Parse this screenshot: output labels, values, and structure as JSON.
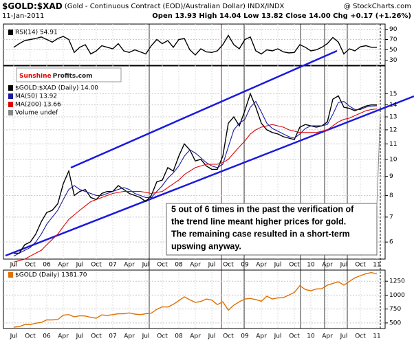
{
  "header": {
    "symbol": "$GOLD:$XAD",
    "description": "(Gold - Continuous Contract (EOD)/Australian Dollar)",
    "exchange": "INDX/INDX",
    "source": "@ StockCharts.com",
    "date": "11-Jan-2011",
    "quote": "Open 13.93 High 14.04 Low 13.82 Close 14.00 Chg +0.17 (+1.26%)"
  },
  "logo": {
    "part1": "Sunshine",
    "part2": "Profits.com"
  },
  "chart_data": [
    {
      "type": "line",
      "series": [
        {
          "name": "RSI(14) 54.91",
          "color": "#000000",
          "values": [
            55,
            62,
            68,
            70,
            72,
            75,
            70,
            65,
            72,
            76,
            70,
            45,
            55,
            60,
            42,
            48,
            58,
            55,
            52,
            62,
            48,
            45,
            50,
            46,
            42,
            58,
            70,
            62,
            68,
            55,
            70,
            72,
            50,
            40,
            52,
            46,
            45,
            48,
            60,
            78,
            60,
            52,
            70,
            75,
            48,
            42,
            50,
            48,
            52,
            46,
            44,
            45,
            60,
            55,
            48,
            50,
            55,
            62,
            74,
            65,
            42,
            52,
            48,
            56,
            58,
            55,
            54.91
          ]
        }
      ],
      "ylim": [
        20,
        100
      ],
      "yticks": [
        30,
        50,
        70,
        90
      ]
    },
    {
      "type": "line",
      "log_scale": true,
      "categories": [
        "Jul",
        null,
        null,
        "Oct",
        null,
        null,
        "06",
        null,
        null,
        "Apr",
        null,
        null,
        "Jul",
        null,
        null,
        "Oct",
        null,
        null,
        "07",
        null,
        null,
        "Apr",
        null,
        null,
        "Jul",
        null,
        null,
        "Oct",
        null,
        null,
        "08",
        null,
        null,
        "Apr",
        null,
        null,
        "Jul",
        null,
        null,
        "Oct",
        null,
        null,
        "09",
        null,
        null,
        "Apr",
        null,
        null,
        "Jul",
        null,
        null,
        "Oct",
        null,
        null,
        "10",
        null,
        null,
        "Apr",
        null,
        null,
        "Jul",
        null,
        null,
        "Oct",
        null,
        null,
        "11"
      ],
      "series": [
        {
          "name": "$GOLD:$XAD (Daily) 14.00",
          "color": "#000000",
          "values": [
            5.6,
            5.6,
            5.9,
            6.0,
            6.3,
            6.8,
            7.2,
            7.3,
            7.6,
            8.6,
            9.3,
            8.0,
            8.2,
            8.3,
            7.9,
            7.8,
            8.1,
            8.2,
            8.2,
            8.5,
            8.3,
            8.1,
            8.0,
            7.9,
            7.7,
            8.0,
            8.7,
            8.8,
            9.5,
            9.3,
            10.2,
            11.0,
            10.6,
            9.9,
            10.0,
            9.6,
            9.4,
            9.4,
            10.2,
            12.5,
            13.0,
            12.3,
            13.5,
            15.0,
            13.8,
            12.5,
            12.0,
            11.8,
            11.7,
            11.5,
            11.4,
            11.3,
            12.2,
            12.4,
            12.3,
            12.2,
            12.3,
            12.6,
            14.5,
            14.8,
            13.8,
            13.7,
            13.5,
            13.7,
            13.9,
            14.0,
            14.0
          ]
        },
        {
          "name": "MA(50) 13.92",
          "color": "#1a1aa0",
          "values": [
            5.5,
            5.6,
            5.7,
            5.8,
            6.0,
            6.3,
            6.7,
            7.0,
            7.3,
            7.8,
            8.3,
            8.5,
            8.3,
            8.2,
            8.1,
            8.0,
            8.0,
            8.1,
            8.2,
            8.3,
            8.4,
            8.3,
            8.1,
            8.0,
            7.9,
            7.9,
            8.2,
            8.5,
            8.9,
            9.2,
            9.6,
            10.2,
            10.6,
            10.4,
            10.1,
            9.8,
            9.6,
            9.5,
            9.7,
            10.8,
            12.0,
            12.5,
            12.8,
            13.8,
            14.3,
            13.4,
            12.5,
            12.1,
            11.9,
            11.7,
            11.5,
            11.4,
            11.7,
            12.1,
            12.3,
            12.3,
            12.3,
            12.4,
            13.2,
            14.2,
            14.3,
            13.9,
            13.6,
            13.6,
            13.8,
            13.9,
            13.92
          ]
        },
        {
          "name": "MA(200) 13.66",
          "color": "#e00000",
          "values": [
            5.3,
            5.35,
            5.4,
            5.5,
            5.6,
            5.7,
            5.9,
            6.1,
            6.3,
            6.6,
            6.9,
            7.1,
            7.3,
            7.5,
            7.7,
            7.8,
            7.9,
            8.0,
            8.1,
            8.15,
            8.2,
            8.2,
            8.2,
            8.2,
            8.15,
            8.1,
            8.15,
            8.2,
            8.4,
            8.6,
            8.8,
            9.1,
            9.3,
            9.5,
            9.6,
            9.7,
            9.7,
            9.7,
            9.8,
            10.0,
            10.4,
            10.8,
            11.2,
            11.7,
            12.0,
            12.2,
            12.3,
            12.4,
            12.3,
            12.2,
            12.0,
            11.9,
            11.8,
            11.8,
            11.8,
            11.8,
            11.9,
            12.0,
            12.3,
            12.6,
            12.8,
            12.9,
            13.1,
            13.3,
            13.5,
            13.6,
            13.66
          ]
        }
      ],
      "legend_note": "Volume undef",
      "annotation": [
        "5 out of 6 times in the past the verification of",
        "the trend line meant higher prices for gold.",
        "The remaining case resulted in a short-term",
        "upswing anyway."
      ],
      "ylim": [
        5.4,
        17.8
      ],
      "yticks": [
        6,
        7,
        8,
        9,
        10,
        11,
        12,
        13,
        14,
        15
      ]
    },
    {
      "type": "line",
      "categories": [
        "Jul",
        null,
        null,
        "Oct",
        null,
        null,
        "06",
        null,
        null,
        "Apr",
        null,
        null,
        "Jul",
        null,
        null,
        "Oct",
        null,
        null,
        "07",
        null,
        null,
        "Apr",
        null,
        null,
        "Jul",
        null,
        null,
        "Oct",
        null,
        null,
        "08",
        null,
        null,
        "Apr",
        null,
        null,
        "Jul",
        null,
        null,
        "Oct",
        null,
        null,
        "09",
        null,
        null,
        "Apr",
        null,
        null,
        "Jul",
        null,
        null,
        "Oct",
        null,
        null,
        "10",
        null,
        null,
        "Apr",
        null,
        null,
        "Jul",
        null,
        null,
        "Oct",
        null,
        null,
        "11"
      ],
      "series": [
        {
          "name": "$GOLD (Daily) 1381.70",
          "color": "#e07000",
          "values": [
            425,
            435,
            470,
            470,
            495,
            510,
            555,
            555,
            560,
            640,
            650,
            610,
            630,
            625,
            600,
            585,
            645,
            635,
            650,
            665,
            665,
            680,
            660,
            650,
            665,
            675,
            745,
            790,
            785,
            835,
            900,
            970,
            915,
            870,
            885,
            930,
            910,
            830,
            880,
            730,
            820,
            880,
            930,
            940,
            920,
            890,
            980,
            930,
            950,
            955,
            1000,
            1050,
            1170,
            1100,
            1080,
            1110,
            1115,
            1180,
            1210,
            1240,
            1180,
            1245,
            1310,
            1350,
            1385,
            1405,
            1381.7
          ]
        }
      ],
      "ylim": [
        400,
        1450
      ],
      "yticks": [
        500,
        750,
        1000,
        1250
      ]
    }
  ]
}
